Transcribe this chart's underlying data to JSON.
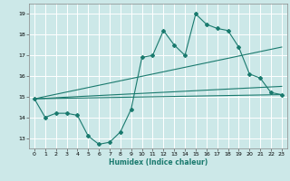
{
  "xlabel": "Humidex (Indice chaleur)",
  "ylabel": "",
  "bg_color": "#cce8e8",
  "grid_color": "#ffffff",
  "line_color": "#1a7a6e",
  "xlim": [
    -0.5,
    23.5
  ],
  "ylim": [
    12.5,
    19.5
  ],
  "yticks": [
    13,
    14,
    15,
    16,
    17,
    18,
    19
  ],
  "xticks": [
    0,
    1,
    2,
    3,
    4,
    5,
    6,
    7,
    8,
    9,
    10,
    11,
    12,
    13,
    14,
    15,
    16,
    17,
    18,
    19,
    20,
    21,
    22,
    23
  ],
  "series": [
    {
      "x": [
        0,
        1,
        2,
        3,
        4,
        5,
        6,
        7,
        8,
        9,
        10,
        11,
        12,
        13,
        14,
        15,
        16,
        17,
        18,
        19,
        20,
        21,
        22,
        23
      ],
      "y": [
        14.9,
        14.0,
        14.2,
        14.2,
        14.1,
        13.1,
        12.7,
        12.8,
        13.3,
        14.4,
        16.9,
        17.0,
        18.2,
        17.5,
        17.0,
        19.0,
        18.5,
        18.3,
        18.2,
        17.4,
        16.1,
        15.9,
        15.2,
        15.1
      ],
      "has_markers": true
    },
    {
      "x": [
        0,
        23
      ],
      "y": [
        14.9,
        15.1
      ],
      "has_markers": false
    },
    {
      "x": [
        0,
        23
      ],
      "y": [
        14.9,
        17.4
      ],
      "has_markers": false
    },
    {
      "x": [
        0,
        23
      ],
      "y": [
        14.9,
        15.5
      ],
      "has_markers": false
    }
  ],
  "xlabel_fontsize": 5.5,
  "xlabel_color": "#1a7a6e",
  "tick_fontsize": 4.5,
  "tick_color": "#555555"
}
